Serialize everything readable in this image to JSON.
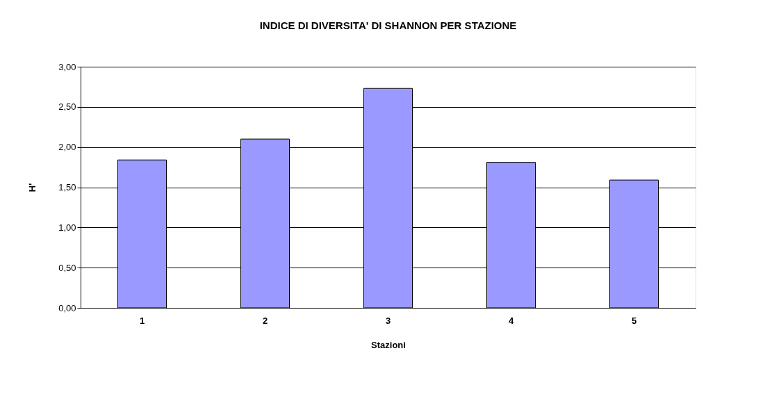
{
  "chart_data": {
    "type": "bar",
    "title": "INDICE DI DIVERSITA' DI SHANNON PER STAZIONE",
    "xlabel": "Stazioni",
    "ylabel": "H'",
    "categories": [
      "1",
      "2",
      "3",
      "4",
      "5"
    ],
    "values": [
      1.84,
      2.1,
      2.73,
      1.81,
      1.59
    ],
    "color": "#9999ff",
    "ylim": [
      0,
      3
    ],
    "yticks": [
      {
        "value": 0,
        "label": "0,00"
      },
      {
        "value": 0.5,
        "label": "0,50"
      },
      {
        "value": 1,
        "label": "1,00"
      },
      {
        "value": 1.5,
        "label": "1,50"
      },
      {
        "value": 2,
        "label": "2,00"
      },
      {
        "value": 2.5,
        "label": "2,50"
      },
      {
        "value": 3,
        "label": "3,00"
      }
    ],
    "grid": "y"
  }
}
